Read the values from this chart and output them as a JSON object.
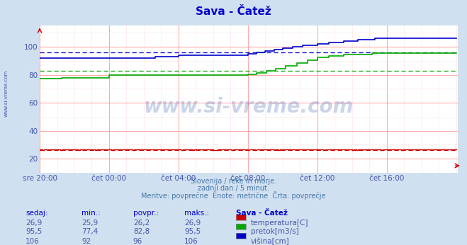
{
  "title": "Sava - Čatež",
  "title_color": "#0000cc",
  "bg_color": "#d0e0f0",
  "plot_bg_color": "#ffffff",
  "grid_color_major": "#ffaaaa",
  "grid_color_minor": "#ffe8e8",
  "tick_color": "#4455aa",
  "text_color": "#4455aa",
  "subtitle_color": "#4477aa",
  "watermark_text": "www.si-vreme.com",
  "watermark_color": "#3355aa",
  "subtitle_lines": [
    "Slovenija / reke in morje.",
    "zadnji dan / 5 minut.",
    "Meritve: povprečne  Enote: metrične  Črta: povprečje"
  ],
  "xticklabels": [
    "sre 20:00",
    "čet 00:00",
    "čet 04:00",
    "čet 08:00",
    "čet 12:00",
    "čet 16:00"
  ],
  "xtick_positions": [
    0,
    48,
    96,
    144,
    192,
    240
  ],
  "yticks": [
    20,
    40,
    60,
    80,
    100
  ],
  "ylim": [
    15,
    115
  ],
  "xlim": [
    0,
    289
  ],
  "n_points": 289,
  "temperature_color": "#cc0000",
  "pretok_color": "#00aa00",
  "visina_color": "#0000cc",
  "temperature_avg": 26.2,
  "pretok_avg": 82.8,
  "visina_avg": 96.0,
  "table_headers": [
    "sedaj:",
    "min.:",
    "povpr.:",
    "maks.:",
    "Sava - Čatež"
  ],
  "table_rows": [
    [
      "26,9",
      "25,9",
      "26,2",
      "26,9",
      "temperatura[C]"
    ],
    [
      "95,5",
      "77,4",
      "82,8",
      "95,5",
      "pretok[m3/s]"
    ],
    [
      "106",
      "92",
      "96",
      "106",
      "višina[cm]"
    ]
  ],
  "row_colors": [
    "#cc0000",
    "#00aa00",
    "#0000cc"
  ]
}
